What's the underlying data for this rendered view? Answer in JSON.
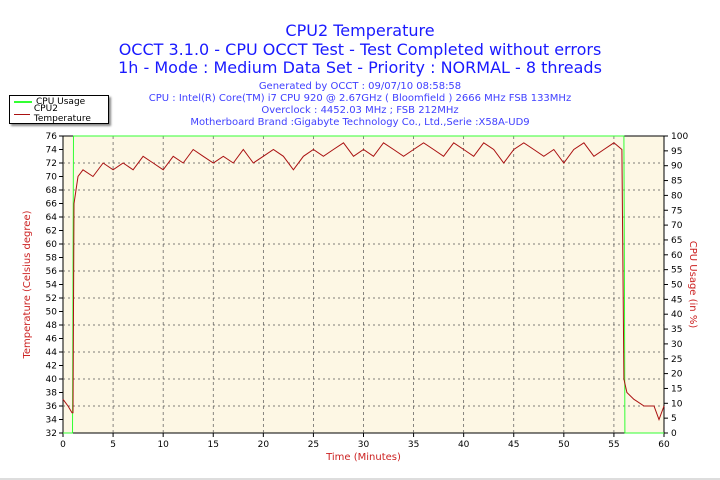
{
  "header": {
    "title": "CPU2 Temperature",
    "subtitle1": "OCCT 3.1.0 - CPU OCCT Test - Test Completed without errors",
    "subtitle2": "1h - Mode : Medium Data Set - Priority : NORMAL - 8 threads",
    "info": [
      "Generated by OCCT : 09/07/10 08:58:58",
      "CPU : Intel(R) Core(TM) i7 CPU 920 @ 2.67GHz ( Bloomfield ) 2666 MHz FSB 133MHz",
      "Overclock : 4452.03 MHz ; FSB 212MHz",
      "Motherboard Brand :Gigabyte Technology Co., Ltd.,Serie :X58A-UD9"
    ]
  },
  "chart_data": {
    "type": "line",
    "xlabel": "Time (Minutes)",
    "ylabel": "Temperature (Celsius degree)",
    "y2label": "CPU Usage (in %)",
    "xlim": [
      0,
      60
    ],
    "ylim": [
      32,
      76
    ],
    "y2lim": [
      0,
      100
    ],
    "xticks": [
      0,
      5,
      10,
      15,
      20,
      25,
      30,
      35,
      40,
      45,
      50,
      55,
      60
    ],
    "yticks": [
      32,
      34,
      36,
      38,
      40,
      42,
      44,
      46,
      48,
      50,
      52,
      54,
      56,
      58,
      60,
      62,
      64,
      66,
      68,
      70,
      72,
      74,
      76
    ],
    "y2ticks": [
      0,
      5,
      10,
      15,
      20,
      25,
      30,
      35,
      40,
      45,
      50,
      55,
      60,
      65,
      70,
      75,
      80,
      85,
      90,
      95,
      100
    ],
    "grid": true,
    "legend": "top-left",
    "series": [
      {
        "name": "CPU Usage",
        "axis": "right",
        "color": "#33ff33",
        "x": [
          0,
          0.95,
          1,
          1.05,
          56,
          56.05,
          56.1,
          60
        ],
        "y": [
          0,
          0,
          55,
          100,
          100,
          55,
          0,
          0
        ]
      },
      {
        "name": "CPU2 Temperature",
        "axis": "left",
        "color": "#aa1111",
        "x": [
          0,
          0.5,
          0.9,
          1.0,
          1.1,
          1.5,
          2,
          3,
          4,
          5,
          6,
          7,
          8,
          9,
          10,
          11,
          12,
          13,
          14,
          15,
          16,
          17,
          18,
          19,
          20,
          21,
          22,
          23,
          24,
          25,
          26,
          27,
          28,
          29,
          30,
          31,
          32,
          33,
          34,
          35,
          36,
          37,
          38,
          39,
          40,
          41,
          42,
          43,
          44,
          45,
          46,
          47,
          48,
          49,
          50,
          51,
          52,
          53,
          54,
          55,
          55.8,
          56,
          56.3,
          57,
          58,
          59,
          59.5,
          60
        ],
        "y": [
          37,
          36,
          35,
          35,
          66,
          70,
          71,
          70,
          72,
          71,
          72,
          71,
          73,
          72,
          71,
          73,
          72,
          74,
          73,
          72,
          73,
          72,
          74,
          72,
          73,
          74,
          73,
          71,
          73,
          74,
          73,
          74,
          75,
          73,
          74,
          73,
          75,
          74,
          73,
          74,
          75,
          74,
          73,
          75,
          74,
          73,
          75,
          74,
          72,
          74,
          75,
          74,
          73,
          74,
          72,
          74,
          75,
          73,
          74,
          75,
          74,
          40,
          38,
          37,
          36,
          36,
          34,
          36
        ]
      }
    ]
  }
}
